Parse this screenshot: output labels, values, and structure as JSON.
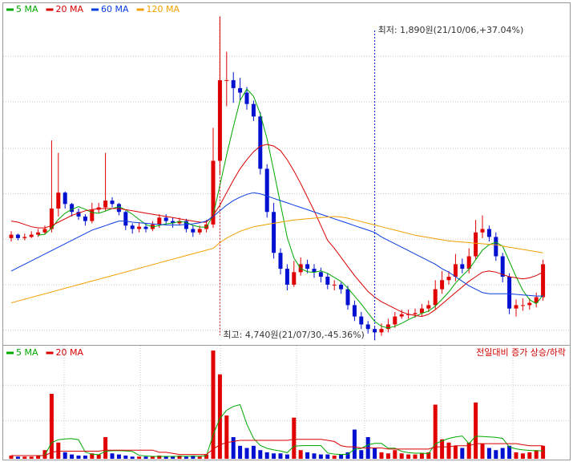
{
  "chart_data": [
    {
      "type": "candlestick",
      "open": [
        2790,
        2820,
        2790,
        2800,
        2820,
        2840,
        2870,
        3050,
        3190,
        3090,
        3020,
        2980,
        2940,
        3040,
        3060,
        3120,
        3090,
        3020,
        2900,
        2870,
        2890,
        2870,
        2910,
        2970,
        2940,
        2920,
        2940,
        2870,
        2840,
        2870,
        2910,
        3470,
        4180,
        4180,
        4110,
        4070,
        3970,
        3860,
        3400,
        3020,
        2660,
        2520,
        2380,
        2490,
        2560,
        2520,
        2490,
        2450,
        2380,
        2380,
        2340,
        2200,
        2100,
        2030,
        1990,
        1960,
        1990,
        2030,
        2100,
        2120,
        2120,
        2130,
        2170,
        2200,
        2340,
        2420,
        2450,
        2560,
        2520,
        2630,
        2840,
        2870,
        2800,
        2630,
        2450,
        2170,
        2200,
        2200,
        2220,
        2270
      ],
      "high": [
        2850,
        2830,
        2830,
        2850,
        2870,
        2900,
        3650,
        3540,
        3200,
        3100,
        3050,
        3000,
        3100,
        3100,
        3540,
        3150,
        3100,
        3030,
        2920,
        2930,
        2920,
        2940,
        3000,
        3000,
        2970,
        2970,
        2960,
        2900,
        2900,
        2950,
        3760,
        4740,
        4430,
        4250,
        4200,
        4120,
        4000,
        3900,
        3440,
        3100,
        2700,
        2560,
        2590,
        2620,
        2600,
        2560,
        2530,
        2480,
        2420,
        2400,
        2370,
        2240,
        2140,
        2060,
        2010,
        2040,
        2080,
        2140,
        2160,
        2160,
        2170,
        2210,
        2240,
        2420,
        2500,
        2500,
        2650,
        2610,
        2700,
        2950,
        2990,
        2900,
        2840,
        2660,
        2480,
        2250,
        2260,
        2260,
        2310,
        2600
      ],
      "low": [
        2760,
        2770,
        2770,
        2790,
        2800,
        2820,
        2840,
        2980,
        3050,
        2980,
        2950,
        2900,
        2920,
        3010,
        3030,
        3060,
        2990,
        2860,
        2830,
        2840,
        2840,
        2850,
        2880,
        2910,
        2880,
        2900,
        2840,
        2800,
        2820,
        2840,
        2880,
        3350,
        3950,
        3980,
        4000,
        3920,
        3820,
        3350,
        2970,
        2610,
        2470,
        2330,
        2360,
        2460,
        2480,
        2440,
        2400,
        2340,
        2330,
        2300,
        2160,
        2060,
        1990,
        1950,
        1890,
        1930,
        1960,
        2000,
        2080,
        2080,
        2090,
        2100,
        2140,
        2160,
        2300,
        2380,
        2410,
        2480,
        2480,
        2600,
        2790,
        2760,
        2590,
        2400,
        2120,
        2100,
        2150,
        2160,
        2180,
        2240
      ],
      "close": [
        2820,
        2790,
        2800,
        2820,
        2840,
        2870,
        3050,
        3190,
        3090,
        3020,
        2980,
        2940,
        3040,
        3060,
        3120,
        3090,
        3020,
        2900,
        2870,
        2890,
        2870,
        2910,
        2970,
        2940,
        2920,
        2940,
        2870,
        2840,
        2870,
        2910,
        3470,
        4180,
        4180,
        4110,
        4070,
        3970,
        3860,
        3400,
        3020,
        2660,
        2520,
        2380,
        2490,
        2560,
        2520,
        2490,
        2450,
        2380,
        2380,
        2340,
        2200,
        2100,
        2030,
        1990,
        1960,
        1990,
        2030,
        2100,
        2120,
        2120,
        2130,
        2170,
        2200,
        2340,
        2420,
        2450,
        2560,
        2520,
        2630,
        2840,
        2870,
        2800,
        2630,
        2450,
        2170,
        2200,
        2200,
        2220,
        2270,
        2560
      ],
      "series": [
        {
          "name": "5 MA",
          "color": "#00a800",
          "values": [
            null,
            null,
            null,
            null,
            2814,
            2824,
            2876,
            2954,
            3008,
            3044,
            3066,
            3044,
            3014,
            3008,
            3028,
            3050,
            3066,
            3038,
            3000,
            2954,
            2910,
            2888,
            2902,
            2916,
            2922,
            2936,
            2928,
            2902,
            2888,
            2886,
            2992,
            3254,
            3522,
            3770,
            4002,
            4102,
            4038,
            3882,
            3664,
            3382,
            3092,
            2796,
            2614,
            2522,
            2494,
            2488,
            2502,
            2480,
            2444,
            2408,
            2350,
            2280,
            2210,
            2132,
            2056,
            2014,
            2000,
            2014,
            2040,
            2072,
            2100,
            2128,
            2148,
            2192,
            2252,
            2316,
            2394,
            2458,
            2516,
            2600,
            2684,
            2732,
            2754,
            2718,
            2584,
            2450,
            2330,
            2248,
            2212,
            2290
          ]
        },
        {
          "name": "20 MA",
          "color": "#d80000",
          "values": [
            2940,
            2930,
            2910,
            2890,
            2880,
            2880,
            2900,
            2930,
            2960,
            2990,
            3010,
            3030,
            3040,
            3050,
            3050,
            3050,
            3050,
            3040,
            3030,
            3020,
            3010,
            3000,
            2990,
            2980,
            2970,
            2960,
            2950,
            2940,
            2930,
            2930,
            2990,
            3080,
            3190,
            3300,
            3400,
            3480,
            3550,
            3600,
            3615,
            3600,
            3560,
            3480,
            3380,
            3270,
            3150,
            3030,
            2900,
            2770,
            2700,
            2620,
            2540,
            2460,
            2390,
            2320,
            2270,
            2230,
            2200,
            2170,
            2140,
            2120,
            2110,
            2100,
            2120,
            2160,
            2210,
            2260,
            2310,
            2360,
            2410,
            2450,
            2490,
            2500,
            2490,
            2470,
            2450,
            2440,
            2430,
            2440,
            2460,
            2490
          ]
        },
        {
          "name": "60 MA",
          "color": "#0a3ce0",
          "values": [
            2500,
            2530,
            2560,
            2590,
            2620,
            2650,
            2680,
            2710,
            2740,
            2770,
            2800,
            2830,
            2860,
            2880,
            2900,
            2920,
            2940,
            2940,
            2930,
            2925,
            2920,
            2915,
            2910,
            2905,
            2905,
            2905,
            2910,
            2915,
            2925,
            2940,
            2980,
            3030,
            3080,
            3120,
            3150,
            3175,
            3190,
            3180,
            3160,
            3140,
            3120,
            3100,
            3080,
            3060,
            3040,
            3020,
            3000,
            2980,
            2960,
            2940,
            2920,
            2900,
            2880,
            2860,
            2840,
            2800,
            2770,
            2740,
            2710,
            2680,
            2650,
            2620,
            2590,
            2560,
            2520,
            2490,
            2450,
            2410,
            2370,
            2340,
            2310,
            2300,
            2300,
            2300,
            2300,
            2295,
            2290,
            2285,
            2280,
            2280
          ]
        },
        {
          "name": "120 MA",
          "color": "#f0a000",
          "values": [
            2220,
            2236,
            2252,
            2268,
            2284,
            2300,
            2316,
            2332,
            2348,
            2364,
            2380,
            2396,
            2412,
            2428,
            2444,
            2460,
            2476,
            2492,
            2508,
            2524,
            2540,
            2556,
            2572,
            2588,
            2604,
            2620,
            2636,
            2652,
            2668,
            2684,
            2700,
            2750,
            2790,
            2820,
            2850,
            2870,
            2890,
            2900,
            2910,
            2920,
            2930,
            2940,
            2950,
            2955,
            2960,
            2965,
            2970,
            2975,
            2980,
            2975,
            2965,
            2950,
            2935,
            2920,
            2905,
            2890,
            2875,
            2860,
            2845,
            2830,
            2815,
            2805,
            2795,
            2785,
            2775,
            2765,
            2760,
            2755,
            2750,
            2745,
            2740,
            2735,
            2730,
            2720,
            2710,
            2700,
            2690,
            2680,
            2670,
            2660
          ]
        }
      ],
      "annotations": {
        "high": "최고: 4,740원(21/07/30,-45.36%)",
        "low": "최저: 1,890원(21/10/06,+37.04%)"
      },
      "ylim": [
        1850,
        4850
      ],
      "yticks": [
        1980,
        2380,
        2780,
        3180,
        3580,
        3990,
        4390
      ],
      "grid": true,
      "up_color": "#e00000",
      "down_color": "#0010d0"
    },
    {
      "type": "bar",
      "values": [
        3,
        2,
        2,
        2,
        3,
        8,
        60,
        15,
        6,
        4,
        3,
        3,
        5,
        4,
        20,
        5,
        4,
        3,
        2,
        2,
        2,
        2,
        3,
        2,
        2,
        3,
        2,
        3,
        2,
        4,
        100,
        78,
        40,
        20,
        12,
        10,
        12,
        8,
        6,
        5,
        5,
        4,
        38,
        8,
        6,
        5,
        4,
        4,
        3,
        4,
        6,
        27,
        8,
        20,
        10,
        6,
        5,
        8,
        5,
        4,
        4,
        5,
        6,
        50,
        18,
        15,
        12,
        10,
        15,
        52,
        14,
        10,
        8,
        10,
        12,
        6,
        5,
        6,
        8,
        12
      ],
      "series": [
        {
          "name": "5 MA",
          "color": "#00a800",
          "values": [
            null,
            null,
            null,
            null,
            2.4,
            3.4,
            15,
            17.6,
            18.4,
            18.6,
            17.6,
            6.2,
            4.2,
            3.8,
            7,
            7.4,
            7.6,
            7.2,
            6.8,
            3.2,
            2.6,
            2.2,
            2.2,
            2.2,
            2.2,
            2.4,
            2.4,
            2.4,
            2.4,
            2.8,
            22.2,
            37.4,
            44.8,
            48.4,
            50,
            32,
            18.8,
            12.4,
            9.6,
            8.2,
            7.2,
            5.6,
            11.6,
            12,
            12.2,
            12.2,
            12.2,
            5.4,
            4.4,
            4,
            4.2,
            8.8,
            9.6,
            13,
            14.2,
            14.2,
            9.8,
            9.8,
            6.8,
            5.6,
            5.2,
            5.2,
            4.8,
            13.8,
            16.6,
            18.8,
            20.2,
            21,
            14,
            20.8,
            20.6,
            20.2,
            19.8,
            18.8,
            10.8,
            9.2,
            8.2,
            7.8,
            7.4,
            7.4
          ]
        },
        {
          "name": "20 MA",
          "color": "#d80000",
          "values": [
            3,
            3,
            3,
            3,
            3,
            3,
            6,
            7,
            7,
            7,
            7,
            7,
            7,
            7,
            8,
            8,
            8,
            8,
            8,
            8,
            8,
            8,
            6,
            6,
            5,
            4,
            4,
            4,
            4,
            4,
            9,
            13,
            15,
            16,
            17,
            17,
            17,
            17,
            17,
            17,
            17,
            17,
            18,
            18,
            18,
            18,
            18,
            17,
            16,
            12,
            11,
            11,
            10,
            10,
            10,
            10,
            9,
            9,
            9,
            9,
            9,
            9,
            9,
            11,
            11,
            11,
            12,
            12,
            12,
            14,
            14,
            14,
            14,
            14,
            14,
            14,
            13,
            12,
            12,
            12
          ]
        }
      ],
      "note": "전일대비 증가 상승/하락",
      "note_color": "#d00000",
      "ylim": [
        0,
        100
      ],
      "yticks": [
        35,
        68
      ],
      "grid": true,
      "up_color": "#e00000",
      "down_color": "#0010d0"
    }
  ]
}
